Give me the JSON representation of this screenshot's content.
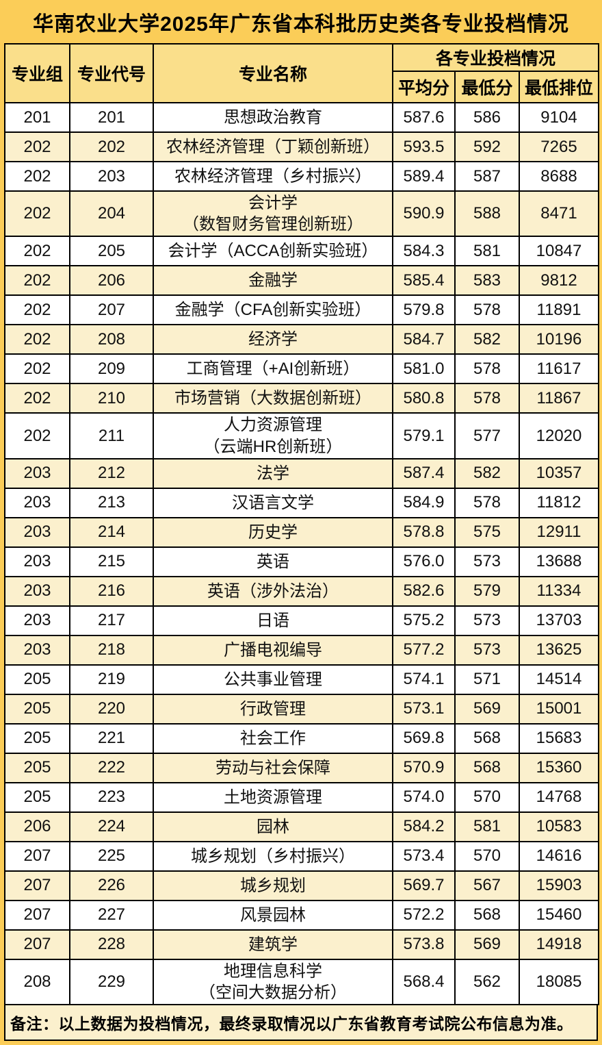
{
  "title": "华南农业大学2025年广东省本科批历史类各专业投档情况",
  "colors": {
    "page_background_gold": "#FBCD58",
    "header_cell_gold": "#FADF8B",
    "stripe_row_cream": "#FBF0CD",
    "plain_row_white": "#FFFFFF",
    "border_black": "#000000",
    "text_black": "#111111"
  },
  "chart_data": {
    "type": "table",
    "title": "华南农业大学2025年广东省本科批历史类各专业投档情况",
    "columns": [
      "专业组",
      "专业代号",
      "专业名称",
      "平均分",
      "最低分",
      "最低排位"
    ],
    "column_group": "各专业投档情况",
    "column_group_spans": [
      "平均分",
      "最低分",
      "最低排位"
    ],
    "rows": [
      [
        "201",
        "201",
        "思想政治教育",
        "587.6",
        "586",
        "9104"
      ],
      [
        "202",
        "202",
        "农林经济管理（丁颖创新班）",
        "593.5",
        "592",
        "7265"
      ],
      [
        "202",
        "203",
        "农林经济管理（乡村振兴）",
        "589.4",
        "587",
        "8688"
      ],
      [
        "202",
        "204",
        "会计学\n（数智财务管理创新班）",
        "590.9",
        "588",
        "8471"
      ],
      [
        "202",
        "205",
        "会计学（ACCA创新实验班）",
        "584.3",
        "581",
        "10847"
      ],
      [
        "202",
        "206",
        "金融学",
        "585.4",
        "583",
        "9812"
      ],
      [
        "202",
        "207",
        "金融学（CFA创新实验班）",
        "579.8",
        "578",
        "11891"
      ],
      [
        "202",
        "208",
        "经济学",
        "584.7",
        "582",
        "10196"
      ],
      [
        "202",
        "209",
        "工商管理（+AI创新班）",
        "581.0",
        "578",
        "11617"
      ],
      [
        "202",
        "210",
        "市场营销（大数据创新班）",
        "580.8",
        "578",
        "11867"
      ],
      [
        "202",
        "211",
        "人力资源管理\n（云端HR创新班）",
        "579.1",
        "577",
        "12020"
      ],
      [
        "203",
        "212",
        "法学",
        "587.4",
        "582",
        "10357"
      ],
      [
        "203",
        "213",
        "汉语言文学",
        "584.9",
        "578",
        "11812"
      ],
      [
        "203",
        "214",
        "历史学",
        "578.8",
        "575",
        "12911"
      ],
      [
        "203",
        "215",
        "英语",
        "576.0",
        "573",
        "13688"
      ],
      [
        "203",
        "216",
        "英语（涉外法治）",
        "582.6",
        "579",
        "11334"
      ],
      [
        "203",
        "217",
        "日语",
        "575.2",
        "573",
        "13703"
      ],
      [
        "203",
        "218",
        "广播电视编导",
        "577.2",
        "573",
        "13625"
      ],
      [
        "205",
        "219",
        "公共事业管理",
        "574.1",
        "571",
        "14514"
      ],
      [
        "205",
        "220",
        "行政管理",
        "573.1",
        "569",
        "15001"
      ],
      [
        "205",
        "221",
        "社会工作",
        "569.8",
        "568",
        "15683"
      ],
      [
        "205",
        "222",
        "劳动与社会保障",
        "570.9",
        "568",
        "15360"
      ],
      [
        "205",
        "223",
        "土地资源管理",
        "574.0",
        "570",
        "14768"
      ],
      [
        "206",
        "224",
        "园林",
        "584.2",
        "581",
        "10583"
      ],
      [
        "207",
        "225",
        "城乡规划（乡村振兴）",
        "573.4",
        "570",
        "14616"
      ],
      [
        "207",
        "226",
        "城乡规划",
        "569.7",
        "567",
        "15903"
      ],
      [
        "207",
        "227",
        "风景园林",
        "572.2",
        "568",
        "15460"
      ],
      [
        "207",
        "228",
        "建筑学",
        "573.8",
        "569",
        "14918"
      ],
      [
        "208",
        "229",
        "地理信息科学\n（空间大数据分析）",
        "568.4",
        "562",
        "18085"
      ]
    ],
    "note": "备注：以上数据为投档情况，最终录取情况以广东省教育考试院公布信息为准。"
  }
}
